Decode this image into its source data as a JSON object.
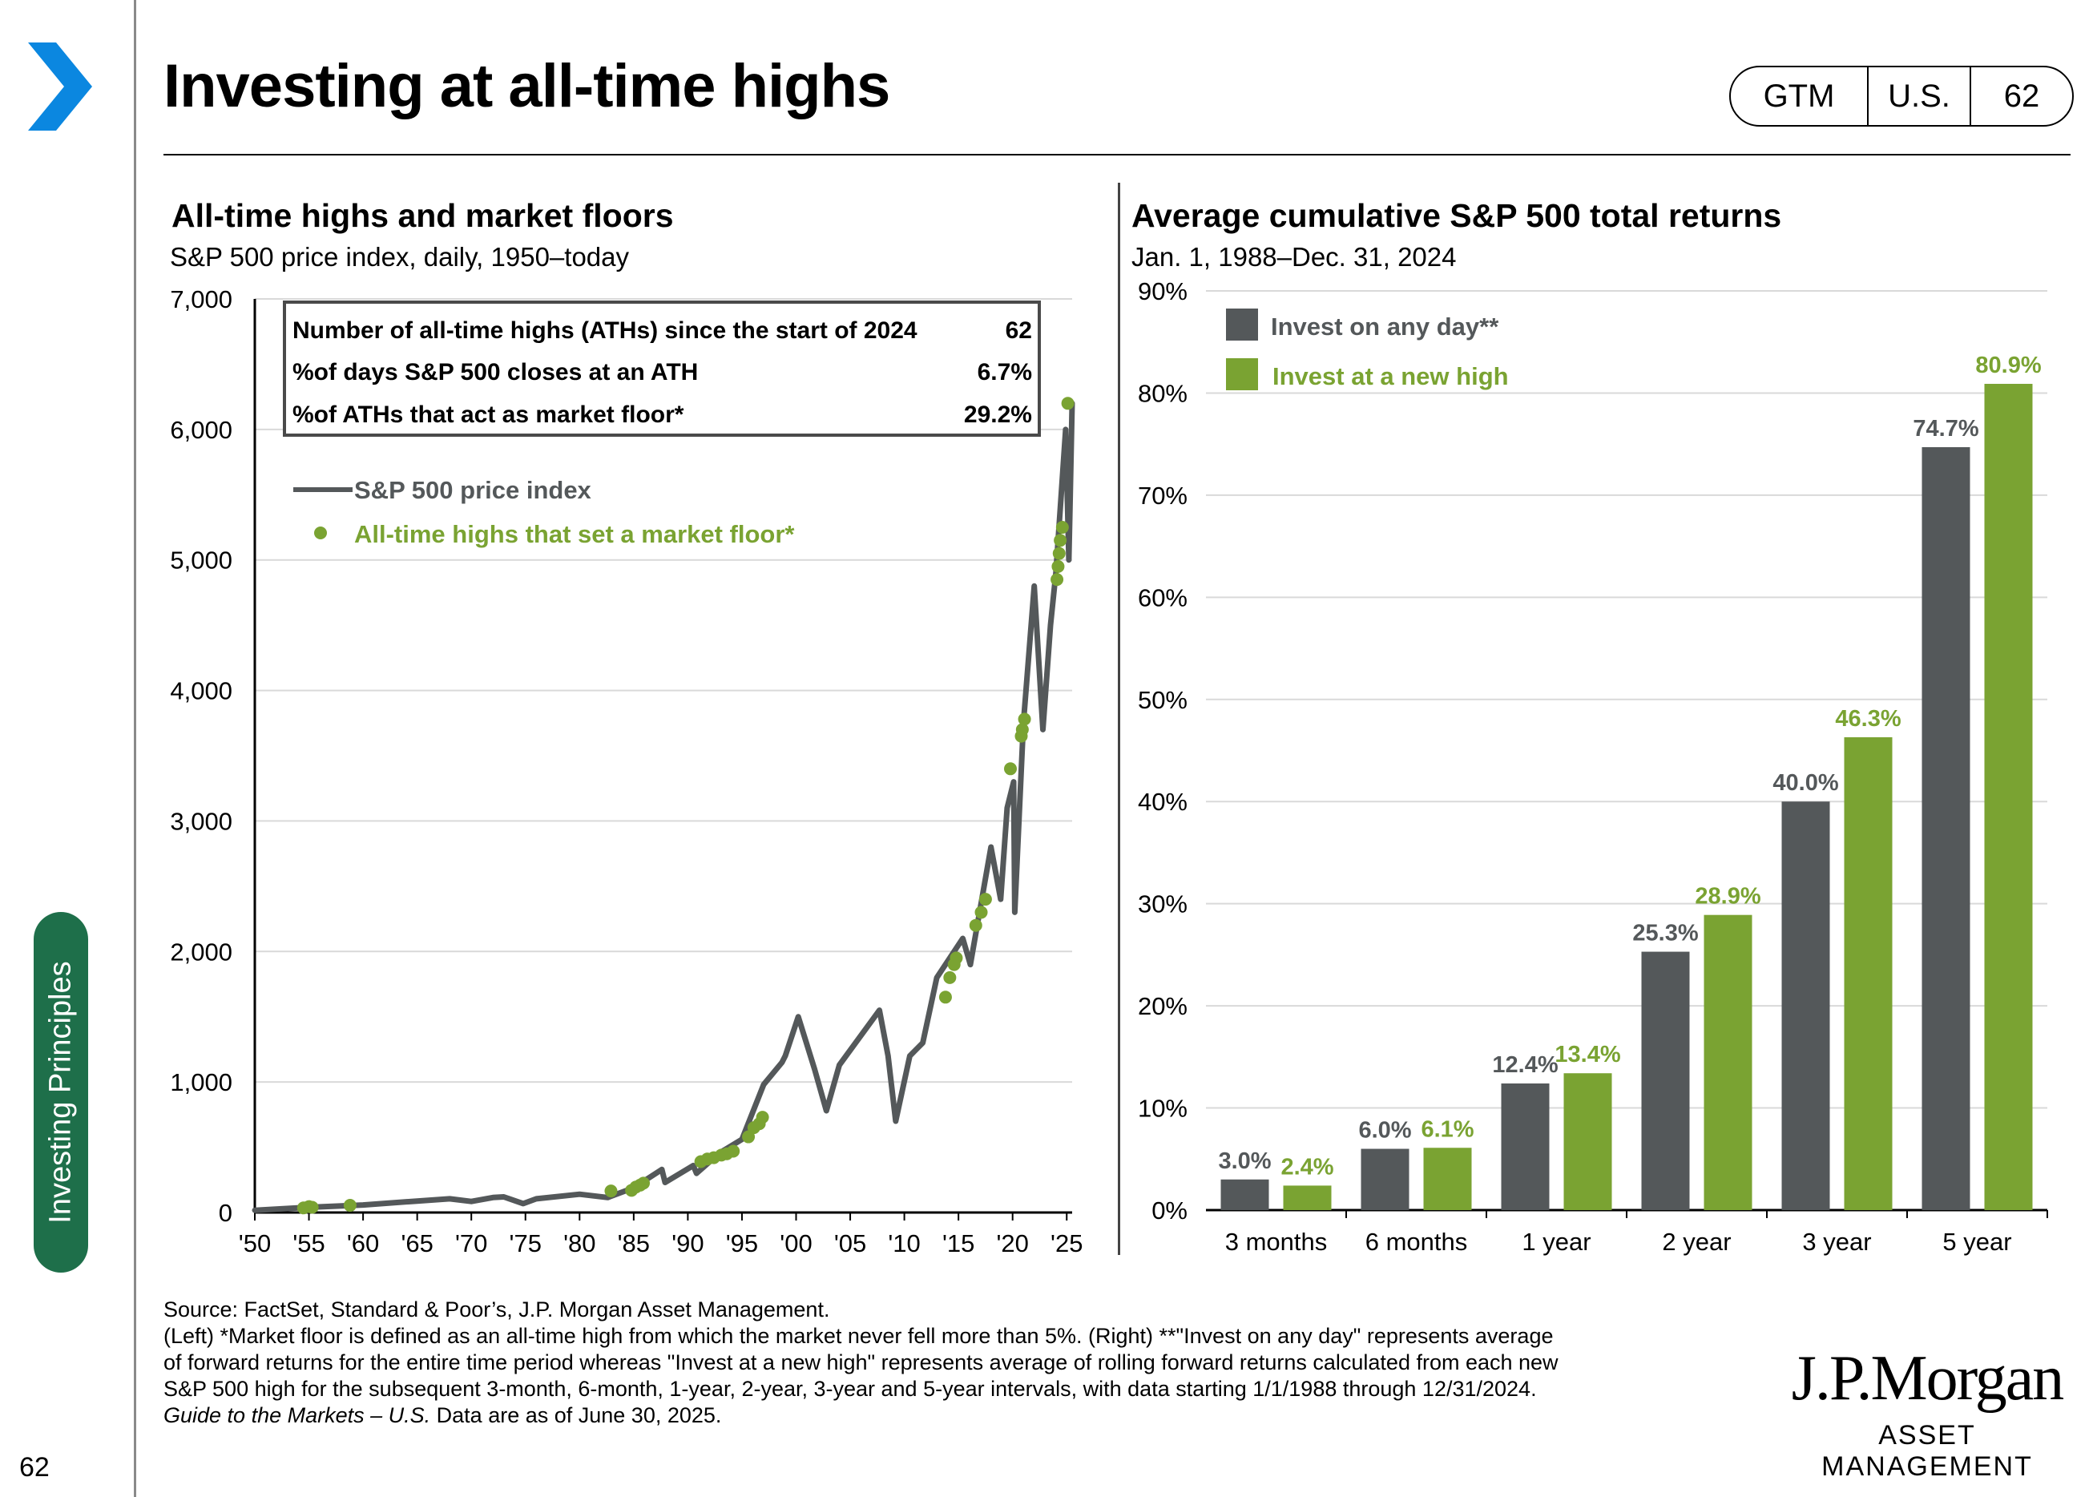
{
  "page": {
    "title": "Investing at all-time highs",
    "badge": [
      "GTM",
      "U.S.",
      "62"
    ],
    "section": "Investing Principles",
    "page_number": "62",
    "colors": {
      "gray": "#54585a",
      "green": "#7aa332",
      "accent_blue": "#0b87e0",
      "section_green": "#1e6f4a"
    }
  },
  "left_chart": {
    "title": "All-time highs and market floors",
    "subtitle": "S&P 500 price index, daily, 1950–today",
    "stats_box": [
      {
        "label": "Number of all-time highs (ATHs) since the start of 2024",
        "value": "62"
      },
      {
        "label": "%of days S&P 500 closes at an ATH",
        "value": "6.7%"
      },
      {
        "label": "%of ATHs that act as market floor*",
        "value": "29.2%"
      }
    ],
    "legend": {
      "line": "S&P 500 price index",
      "dots": "All-time highs that set a market floor*"
    }
  },
  "right_chart": {
    "title": "Average cumulative S&P 500 total returns",
    "subtitle": "Jan. 1, 1988–Dec. 31, 2024",
    "legend": [
      "Invest on any day**",
      "Invest at a new high"
    ]
  },
  "chart_data": [
    {
      "type": "line",
      "title": "All-time highs and market floors",
      "subtitle": "S&P 500 price index, daily, 1950–today",
      "x_tick_labels": [
        "'50",
        "'55",
        "'60",
        "'65",
        "'70",
        "'75",
        "'80",
        "'85",
        "'90",
        "'95",
        "'00",
        "'05",
        "'10",
        "'15",
        "'20",
        "'25"
      ],
      "x_tick_years": [
        1950,
        1955,
        1960,
        1965,
        1970,
        1975,
        1980,
        1985,
        1990,
        1995,
        2000,
        2005,
        2010,
        2015,
        2020,
        2025
      ],
      "y_ticks": [
        "0",
        "1,000",
        "2,000",
        "3,000",
        "4,000",
        "5,000",
        "6,000",
        "7,000"
      ],
      "xlim": [
        1950,
        2025.5
      ],
      "ylim": [
        0,
        7000
      ],
      "grid": "horizontal",
      "series": [
        {
          "name": "S&P 500 price index",
          "x": [
            1950,
            1955,
            1960,
            1965,
            1968,
            1970,
            1972,
            1973,
            1974.8,
            1976,
            1980,
            1982.6,
            1985,
            1987.6,
            1987.9,
            1990.5,
            1990.8,
            1993,
            1995,
            1997,
            1998.7,
            1999,
            2000.2,
            2001.7,
            2002.8,
            2004,
            2007.7,
            2008.5,
            2009.2,
            2010.5,
            2011.7,
            2013,
            2015.4,
            2016.1,
            2018,
            2018.9,
            2019.5,
            2020.1,
            2020.2,
            2021,
            2022,
            2022.8,
            2023.5,
            2024,
            2024.9,
            2025.2,
            2025.3,
            2025.5
          ],
          "y": [
            17,
            40,
            58,
            88,
            105,
            85,
            115,
            120,
            68,
            105,
            140,
            115,
            190,
            330,
            230,
            360,
            300,
            460,
            560,
            980,
            1150,
            1200,
            1500,
            1100,
            780,
            1130,
            1550,
            1200,
            700,
            1200,
            1300,
            1800,
            2100,
            1900,
            2800,
            2400,
            3100,
            3300,
            2300,
            3750,
            4800,
            3700,
            4500,
            4900,
            6000,
            5000,
            5400,
            6200
          ]
        }
      ],
      "floors": {
        "name": "All-time highs that set a market floor*",
        "x": [
          1954.5,
          1955,
          1955.3,
          1958.8,
          1982.9,
          1984.8,
          1985.2,
          1985.6,
          1985.9,
          1991.2,
          1991.8,
          1992.4,
          1993.1,
          1993.6,
          1994.2,
          1995.6,
          1996.1,
          1996.6,
          1996.9,
          2013.8,
          2014.2,
          2014.6,
          2014.8,
          2016.6,
          2017.1,
          2017.5,
          2019.8,
          2020.8,
          2020.9,
          2021.1,
          2024.1,
          2024.2,
          2024.3,
          2024.4,
          2024.6,
          2025.1
        ],
        "y": [
          35,
          45,
          40,
          55,
          165,
          170,
          195,
          210,
          225,
          390,
          410,
          420,
          440,
          450,
          470,
          580,
          650,
          680,
          730,
          1650,
          1800,
          1900,
          1950,
          2200,
          2300,
          2400,
          3400,
          3650,
          3700,
          3780,
          4850,
          4950,
          5050,
          5150,
          5250,
          6200
        ]
      }
    },
    {
      "type": "bar",
      "title": "Average cumulative S&P 500 total returns",
      "subtitle": "Jan. 1, 1988–Dec. 31, 2024",
      "categories": [
        "3 months",
        "6 months",
        "1 year",
        "2 year",
        "3 year",
        "5 year"
      ],
      "series": [
        {
          "name": "Invest on any day**",
          "values": [
            3.0,
            6.0,
            12.4,
            25.3,
            40.0,
            74.7
          ],
          "labels": [
            "3.0%",
            "6.0%",
            "12.4%",
            "25.3%",
            "40.0%",
            "74.7%"
          ],
          "color": "#54585a"
        },
        {
          "name": "Invest at a new high",
          "values": [
            2.4,
            6.1,
            13.4,
            28.9,
            46.3,
            80.9
          ],
          "labels": [
            "2.4%",
            "6.1%",
            "13.4%",
            "28.9%",
            "46.3%",
            "80.9%"
          ],
          "color": "#7aa332"
        }
      ],
      "y_ticks": [
        "0%",
        "10%",
        "20%",
        "30%",
        "40%",
        "50%",
        "60%",
        "70%",
        "80%",
        "90%"
      ],
      "ylim": [
        0,
        90
      ],
      "grid": "horizontal"
    }
  ],
  "footnotes": {
    "source": "Source: FactSet, Standard & Poor’s, J.P. Morgan Asset Management.",
    "line1": "(Left) *Market floor is defined as an all-time high from which the market never fell more than 5%. (Right) **\"Invest on any day\" represents average",
    "line2": "of forward returns for the entire time period whereas \"Invest at a new high\" represents average of rolling forward returns calculated from each new",
    "line3": "S&P 500 high for the subsequent 3-month, 6-month, 1-year, 2-year, 3-year and 5-year intervals, with data starting 1/1/1988  through 12/31/2024.",
    "line4_italic": "Guide to the Markets – U.S.",
    "line4_rest": " Data are as of June 30, 2025."
  },
  "logo": {
    "name": "J.P.Morgan",
    "sub": "ASSET MANAGEMENT"
  }
}
